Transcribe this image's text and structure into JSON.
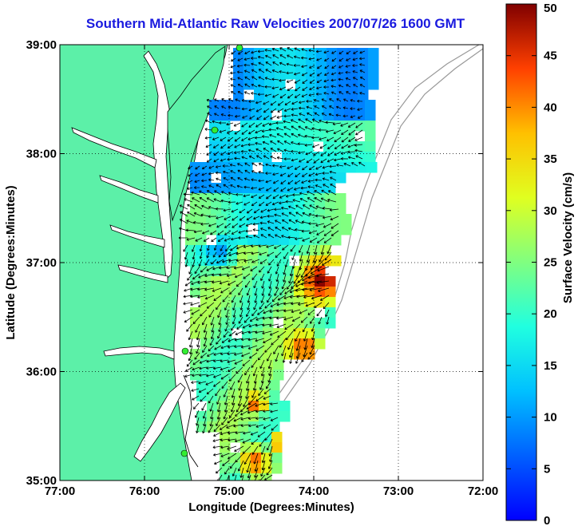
{
  "title": "Southern Mid-Atlantic Raw Velocities 2007/07/26 1600 GMT",
  "x_axis": {
    "label": "Longitude (Degrees:Minutes)",
    "ticks": [
      "77:00",
      "76:00",
      "75:00",
      "74:00",
      "73:00",
      "72:00"
    ],
    "range": [
      -77,
      -72
    ]
  },
  "y_axis": {
    "label": "Latitude (Degrees:Minutes)",
    "ticks": [
      "39:00",
      "38:00",
      "37:00",
      "36:00",
      "35:00"
    ],
    "range": [
      35,
      39
    ]
  },
  "colorbar": {
    "label": "Surface Velocity (cm/s)",
    "ticks": [
      "0",
      "5",
      "10",
      "15",
      "20",
      "25",
      "30",
      "35",
      "40",
      "45",
      "50"
    ],
    "range": [
      0,
      50
    ],
    "colormap": "jet"
  },
  "colors": {
    "land": "#5cf0a8",
    "coast": "#000000",
    "title": "#1a1adf",
    "station": "#33ee33",
    "bathymetry": "#999999"
  },
  "grid": "dotted"
}
